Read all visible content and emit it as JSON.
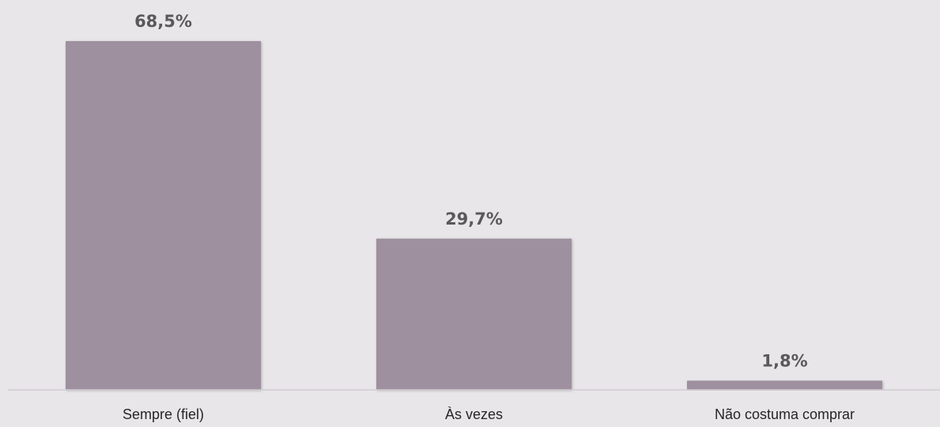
{
  "chart_data": {
    "type": "bar",
    "categories": [
      "Sempre (fiel)",
      "Às vezes",
      "Não costuma comprar"
    ],
    "values": [
      68.5,
      29.7,
      1.8
    ],
    "data_labels": [
      "68,5%",
      "29,7%",
      "1,8%"
    ],
    "title": "",
    "xlabel": "",
    "ylabel": "",
    "ylim": [
      0,
      68.5
    ],
    "grid": false,
    "legend": "none",
    "colors": {
      "bar": "#9e909f",
      "background": "#e8e6e9",
      "axis": "#d0ccd1",
      "label": "#595959",
      "category": "#262626"
    }
  }
}
